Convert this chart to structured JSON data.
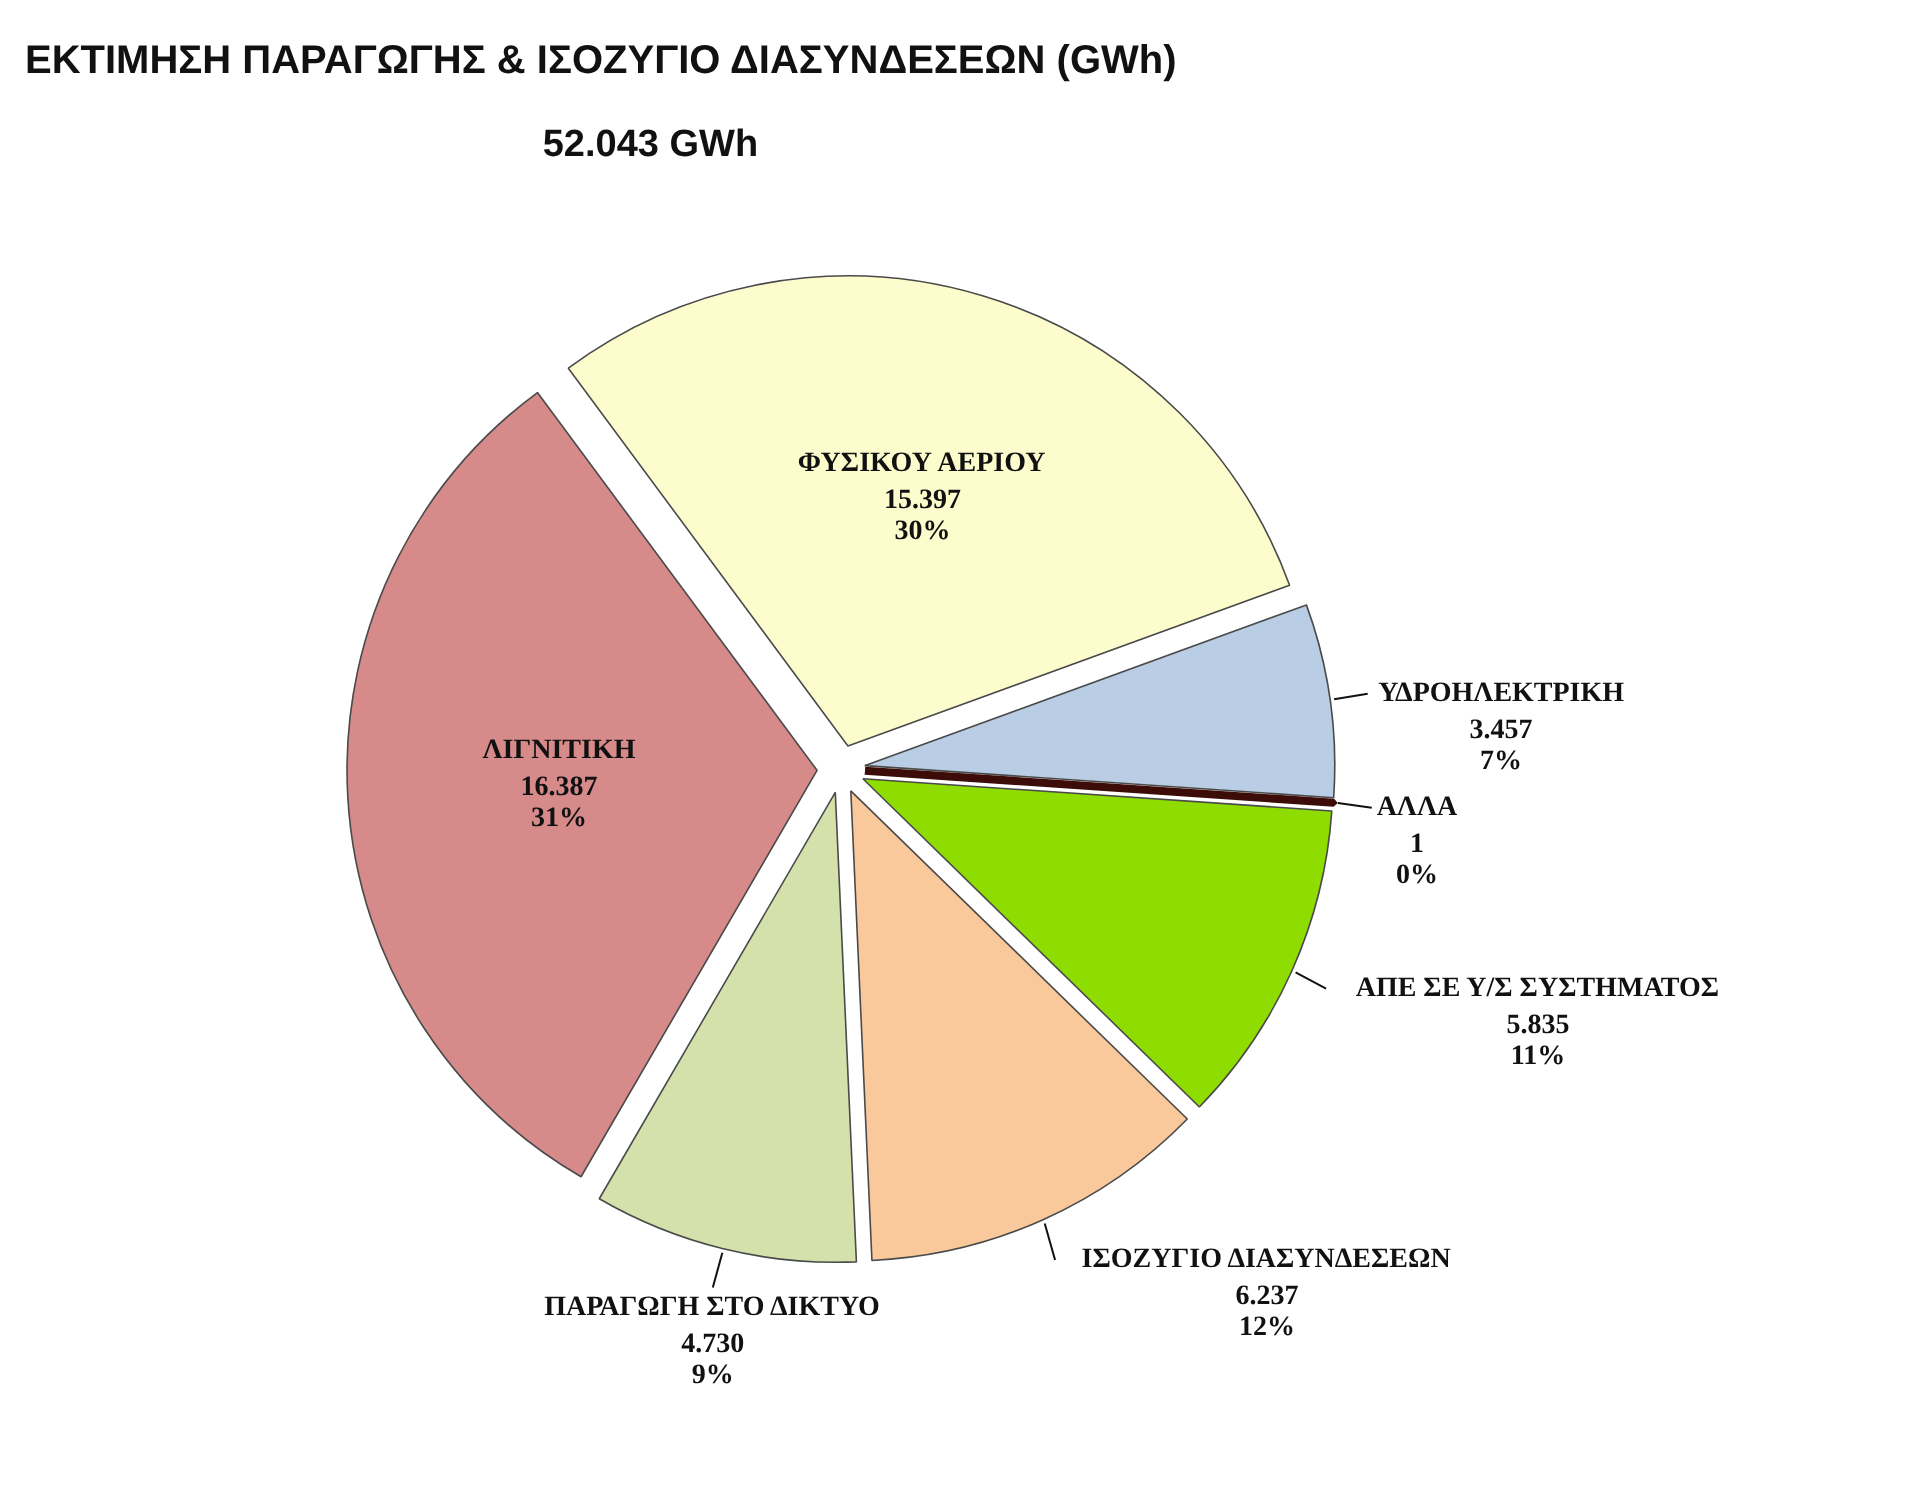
{
  "chart_data": {
    "type": "pie",
    "title": "ΕΚΤΙΜΗΣΗ ΠΑΡΑΓΩΓΗΣ & ΙΣΟΖΥΓΙΟ ΔΙΑΣΥΝΔΕΣΕΩΝ (GWh)",
    "subtitle": "52.043   GWh",
    "categories": [
      "ΥΔΡΟΗΛΕΚΤΡΙΚΗ",
      "ΑΛΛΑ",
      "ΑΠΕ ΣΕ Υ/Σ ΣΥΣΤΗΜΑΤΟΣ",
      "ΙΣΟΖΥΓΙΟ ΔΙΑΣΥΝΔΕΣΕΩΝ",
      "ΠΑΡΑΓΩΓΗ ΣΤΟ ΔΙΚΤΥΟ",
      "ΛΙΓΝΙΤΙΚΗ",
      "ΦΥΣΙΚΟΥ ΑΕΡΙΟΥ"
    ],
    "values": [
      3457,
      1,
      5835,
      6237,
      4730,
      16387,
      15397
    ],
    "colors": [
      "#b9cde5",
      "#3c0d08",
      "#8fdc00",
      "#f9c89b",
      "#d4e1aa",
      "#d68a8a",
      "#fdfccd"
    ],
    "value_labels": [
      "3.457\n7%",
      "1\n0%",
      "5.835\n11%",
      "6.237\n12%",
      "4.730\n9%",
      "16.387\n31%",
      "15.397\n30%"
    ]
  }
}
